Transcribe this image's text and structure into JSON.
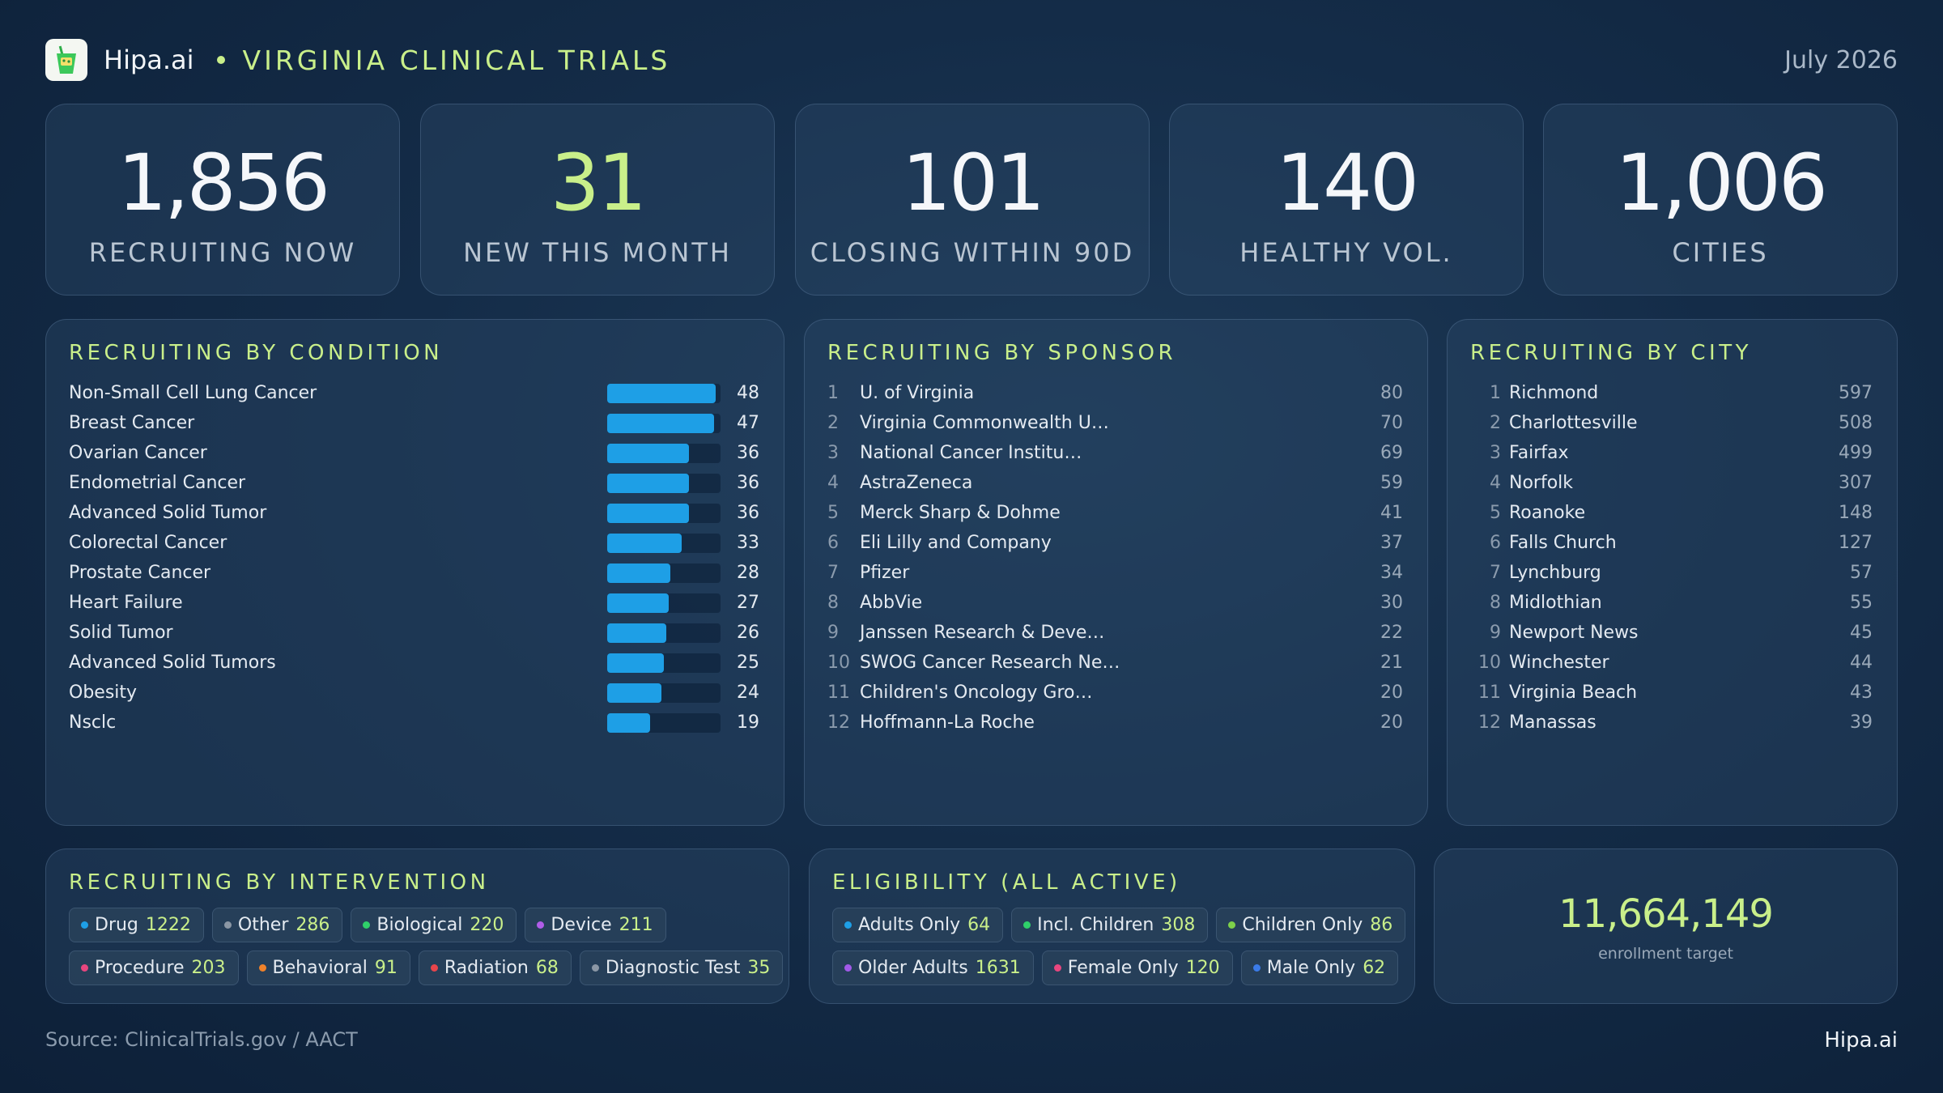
{
  "header": {
    "brand": "Hipa.ai",
    "title": "VIRGINIA CLINICAL TRIALS",
    "date": "July 2026",
    "logo_icon": "cocktail-glass-icon",
    "accent_color": "#c9ef8a"
  },
  "kpis": [
    {
      "value": "1,856",
      "label": "RECRUITING NOW"
    },
    {
      "value": "31",
      "label": "NEW THIS MONTH",
      "accent": true
    },
    {
      "value": "101",
      "label": "CLOSING WITHIN 90D"
    },
    {
      "value": "140",
      "label": "HEALTHY VOL."
    },
    {
      "value": "1,006",
      "label": "CITIES"
    }
  ],
  "condition": {
    "title": "RECRUITING BY CONDITION",
    "bar_color": "#1e9fe6",
    "items": [
      {
        "name": "Non-Small Cell Lung Cancer",
        "value": 48
      },
      {
        "name": "Breast Cancer",
        "value": 47
      },
      {
        "name": "Ovarian Cancer",
        "value": 36
      },
      {
        "name": "Endometrial Cancer",
        "value": 36
      },
      {
        "name": "Advanced Solid Tumor",
        "value": 36
      },
      {
        "name": "Colorectal Cancer",
        "value": 33
      },
      {
        "name": "Prostate Cancer",
        "value": 28
      },
      {
        "name": "Heart Failure",
        "value": 27
      },
      {
        "name": "Solid Tumor",
        "value": 26
      },
      {
        "name": "Advanced Solid Tumors",
        "value": 25
      },
      {
        "name": "Obesity",
        "value": 24
      },
      {
        "name": "Nsclc",
        "value": 19
      }
    ]
  },
  "sponsor": {
    "title": "RECRUITING BY SPONSOR",
    "items": [
      {
        "rank": "1",
        "name": "U. of Virginia",
        "value": "80"
      },
      {
        "rank": "2",
        "name": "Virginia Commonwealth U…",
        "value": "70"
      },
      {
        "rank": "3",
        "name": "National Cancer Institu…",
        "value": "69"
      },
      {
        "rank": "4",
        "name": "AstraZeneca",
        "value": "59"
      },
      {
        "rank": "5",
        "name": "Merck Sharp & Dohme",
        "value": "41"
      },
      {
        "rank": "6",
        "name": "Eli Lilly and Company",
        "value": "37"
      },
      {
        "rank": "7",
        "name": "Pfizer",
        "value": "34"
      },
      {
        "rank": "8",
        "name": "AbbVie",
        "value": "30"
      },
      {
        "rank": "9",
        "name": "Janssen Research & Deve…",
        "value": "22"
      },
      {
        "rank": "10",
        "name": "SWOG Cancer Research Ne…",
        "value": "21"
      },
      {
        "rank": "11",
        "name": "Children's Oncology Gro…",
        "value": "20"
      },
      {
        "rank": "12",
        "name": "Hoffmann-La Roche",
        "value": "20"
      }
    ]
  },
  "city": {
    "title": "RECRUITING BY CITY",
    "items": [
      {
        "rank": "1",
        "name": "Richmond",
        "value": "597"
      },
      {
        "rank": "2",
        "name": "Charlottesville",
        "value": "508"
      },
      {
        "rank": "3",
        "name": "Fairfax",
        "value": "499"
      },
      {
        "rank": "4",
        "name": "Norfolk",
        "value": "307"
      },
      {
        "rank": "5",
        "name": "Roanoke",
        "value": "148"
      },
      {
        "rank": "6",
        "name": "Falls Church",
        "value": "127"
      },
      {
        "rank": "7",
        "name": "Lynchburg",
        "value": "57"
      },
      {
        "rank": "8",
        "name": "Midlothian",
        "value": "55"
      },
      {
        "rank": "9",
        "name": "Newport News",
        "value": "45"
      },
      {
        "rank": "10",
        "name": "Winchester",
        "value": "44"
      },
      {
        "rank": "11",
        "name": "Virginia Beach",
        "value": "43"
      },
      {
        "rank": "12",
        "name": "Manassas",
        "value": "39"
      }
    ]
  },
  "intervention": {
    "title": "RECRUITING BY INTERVENTION",
    "rows": [
      [
        {
          "label": "Drug",
          "count": "1222",
          "color": "#1e9fe6"
        },
        {
          "label": "Other",
          "count": "286",
          "color": "#8b97a5"
        },
        {
          "label": "Biological",
          "count": "220",
          "color": "#2fcf6a"
        },
        {
          "label": "Device",
          "count": "211",
          "color": "#b05de8"
        }
      ],
      [
        {
          "label": "Procedure",
          "count": "203",
          "color": "#e8467f"
        },
        {
          "label": "Behavioral",
          "count": "91",
          "color": "#f0822a"
        },
        {
          "label": "Radiation",
          "count": "68",
          "color": "#e8454b"
        },
        {
          "label": "Diagnostic Test",
          "count": "35",
          "color": "#8b97a5"
        }
      ]
    ]
  },
  "eligibility": {
    "title": "ELIGIBILITY (ALL ACTIVE)",
    "rows": [
      [
        {
          "label": "Adults Only",
          "count": "64",
          "color": "#1e9fe6"
        },
        {
          "label": "Incl. Children",
          "count": "308",
          "color": "#2fcf6a"
        },
        {
          "label": "Children Only",
          "count": "86",
          "color": "#7ed14a"
        }
      ],
      [
        {
          "label": "Older Adults",
          "count": "1631",
          "color": "#a25ae8"
        },
        {
          "label": "Female Only",
          "count": "120",
          "color": "#e8467f"
        },
        {
          "label": "Male Only",
          "count": "62",
          "color": "#3b7be8"
        }
      ]
    ]
  },
  "enrollment": {
    "value": "11,664,149",
    "label": "enrollment target"
  },
  "footer": {
    "source": "Source: ClinicalTrials.gov /  AACT",
    "brand": "Hipa.ai"
  }
}
